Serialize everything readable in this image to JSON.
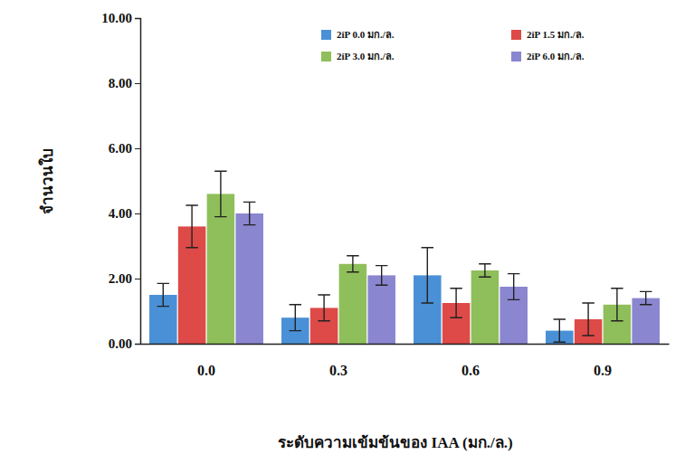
{
  "chart_data": {
    "type": "bar",
    "x_label": "ระดับความเข้มข้นของ IAA (มก./ล.)",
    "y_label": "จำนวนใบ",
    "categories": [
      "0.0",
      "0.3",
      "0.6",
      "0.9"
    ],
    "series": [
      {
        "name": "2iP 0.0 มก./ล.",
        "color": "#4a90d6",
        "values": [
          1.5,
          0.8,
          2.1,
          0.4
        ],
        "errors": [
          0.35,
          0.4,
          0.85,
          0.35
        ]
      },
      {
        "name": "2iP 1.5 มก./ล.",
        "color": "#dd4a47",
        "values": [
          3.6,
          1.1,
          1.25,
          0.75
        ],
        "errors": [
          0.65,
          0.4,
          0.45,
          0.5
        ]
      },
      {
        "name": "2iP 3.0 มก./ล.",
        "color": "#8fbf5a",
        "values": [
          4.6,
          2.45,
          2.25,
          1.2
        ],
        "errors": [
          0.7,
          0.25,
          0.2,
          0.5
        ]
      },
      {
        "name": "2iP 6.0 มก./ล.",
        "color": "#8a86d0",
        "values": [
          4.0,
          2.1,
          1.75,
          1.4
        ],
        "errors": [
          0.35,
          0.3,
          0.4,
          0.2
        ]
      }
    ],
    "ylim": [
      0,
      10
    ],
    "yticks": [
      {
        "value": 0,
        "label": "0.00"
      },
      {
        "value": 2,
        "label": "2.00"
      },
      {
        "value": 4,
        "label": "4.00"
      },
      {
        "value": 6,
        "label": "6.00"
      },
      {
        "value": 8,
        "label": "8.00"
      },
      {
        "value": 10,
        "label": "10.00"
      }
    ],
    "legend": "top",
    "grid": false
  }
}
